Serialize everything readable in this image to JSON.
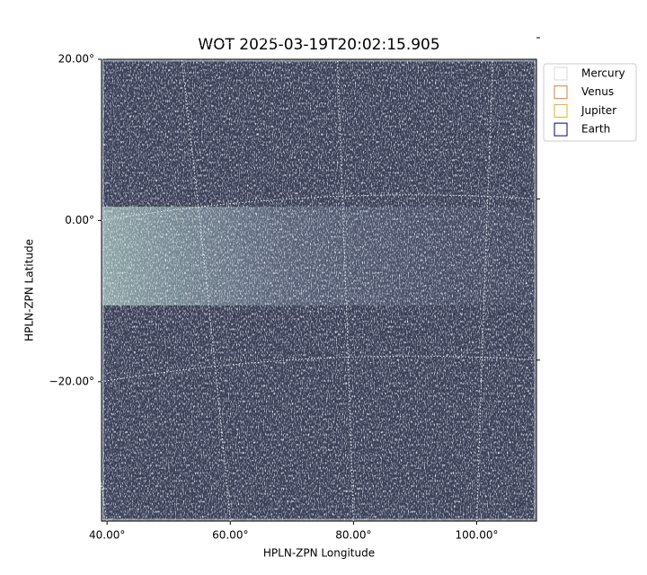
{
  "chart_data": {
    "type": "image",
    "title": "WOT 2025-03-19T20:02:15.905",
    "xlabel": "HPLN-ZPN Longitude",
    "ylabel": "HPLN-ZPN Latitude",
    "xlim": [
      39.1,
      109.7
    ],
    "ylim": [
      -37.3,
      20.0
    ],
    "xticks": [
      {
        "value": 40,
        "label": "40.00°"
      },
      {
        "value": 60,
        "label": "60.00°"
      },
      {
        "value": 80,
        "label": "80.00°"
      },
      {
        "value": 100,
        "label": "100.00°"
      }
    ],
    "yticks": [
      {
        "value": 20,
        "label": "20.00°"
      },
      {
        "value": 0,
        "label": "0.00°"
      },
      {
        "value": -20,
        "label": "−20.00°"
      }
    ],
    "grid": true,
    "series": [
      {
        "name": "Mercury",
        "color": "#d9d9d9"
      },
      {
        "name": "Venus",
        "color": "#e07b39"
      },
      {
        "name": "Jupiter",
        "color": "#e3b21c"
      },
      {
        "name": "Earth",
        "color": "#000080"
      }
    ]
  }
}
